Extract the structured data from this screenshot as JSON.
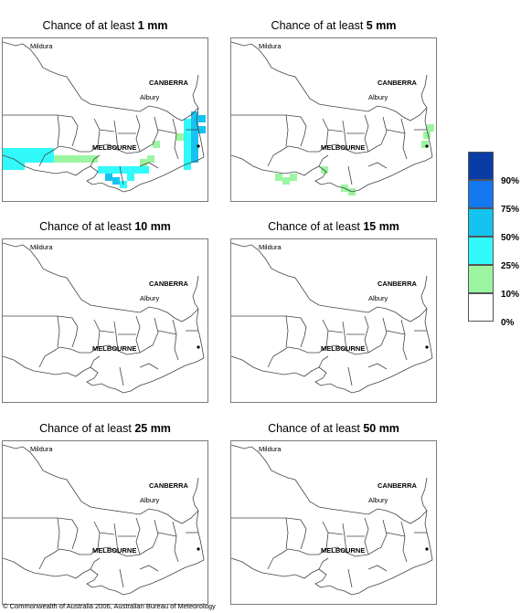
{
  "panels": [
    {
      "prefix": "Chance of at least ",
      "amount": "1 mm",
      "shading": "heavy"
    },
    {
      "prefix": "Chance of at least ",
      "amount": "5 mm",
      "shading": "light"
    },
    {
      "prefix": "Chance of at least ",
      "amount": "10 mm",
      "shading": "none"
    },
    {
      "prefix": "Chance of at least ",
      "amount": "15 mm",
      "shading": "none"
    },
    {
      "prefix": "Chance of at least ",
      "amount": "25 mm",
      "shading": "none"
    },
    {
      "prefix": "Chance of at least ",
      "amount": "50 mm",
      "shading": "none"
    }
  ],
  "places": {
    "mildura": "Mildura",
    "canberra": "CANBERRA",
    "albury": "Albury",
    "melbourne": "MELBOURNE"
  },
  "legend": {
    "labels": [
      "90%",
      "75%",
      "50%",
      "25%",
      "10%",
      "0%"
    ],
    "colors": [
      "#0a3ca5",
      "#1478f0",
      "#14c3f0",
      "#32fafa",
      "#9bf5a0",
      "#ffffff"
    ]
  },
  "copyright": "© Commonwealth of Australia 2006, Australian Bureau of Meteorology"
}
